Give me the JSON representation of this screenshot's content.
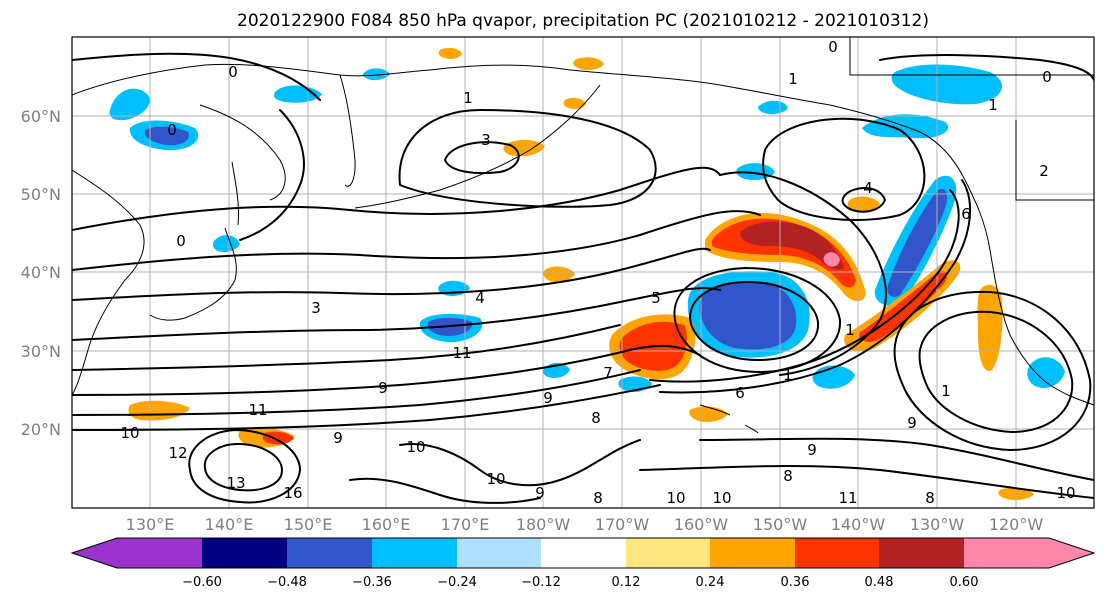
{
  "title": "2020122900 F084 850 hPa qvapor, precipitation PC (2021010212 - 2021010312)",
  "latitude_labels": [
    "60°N",
    "50°N",
    "40°N",
    "30°N",
    "20°N"
  ],
  "longitude_labels": [
    "130°E",
    "140°E",
    "150°E",
    "160°E",
    "170°E",
    "180°W",
    "170°W",
    "160°W",
    "150°W",
    "140°W",
    "130°W",
    "120°W"
  ],
  "colorbar": {
    "colors": [
      "#9933cc",
      "#000080",
      "#3355cc",
      "#00bfff",
      "#b0e0ff",
      "#ffffff",
      "#ffe680",
      "#ffa500",
      "#ff3300",
      "#b22222",
      "#ff88aa"
    ],
    "tick_labels": [
      "−0.60",
      "−0.48",
      "−0.36",
      "−0.24",
      "−0.12",
      "0.12",
      "0.24",
      "0.36",
      "0.48",
      "0.60"
    ]
  },
  "contour_labels": [
    "0",
    "0",
    "1",
    "1",
    "3",
    "2",
    "4",
    "3",
    "4",
    "5",
    "6",
    "11",
    "9",
    "10",
    "12",
    "13",
    "10",
    "9",
    "9",
    "10",
    "8",
    "10",
    "11",
    "8",
    "8",
    "7",
    "1",
    "1",
    "9",
    "10",
    "16",
    "9",
    "0",
    "0",
    "1",
    "0",
    "1",
    "6",
    "8",
    "9",
    "10",
    "11"
  ]
}
